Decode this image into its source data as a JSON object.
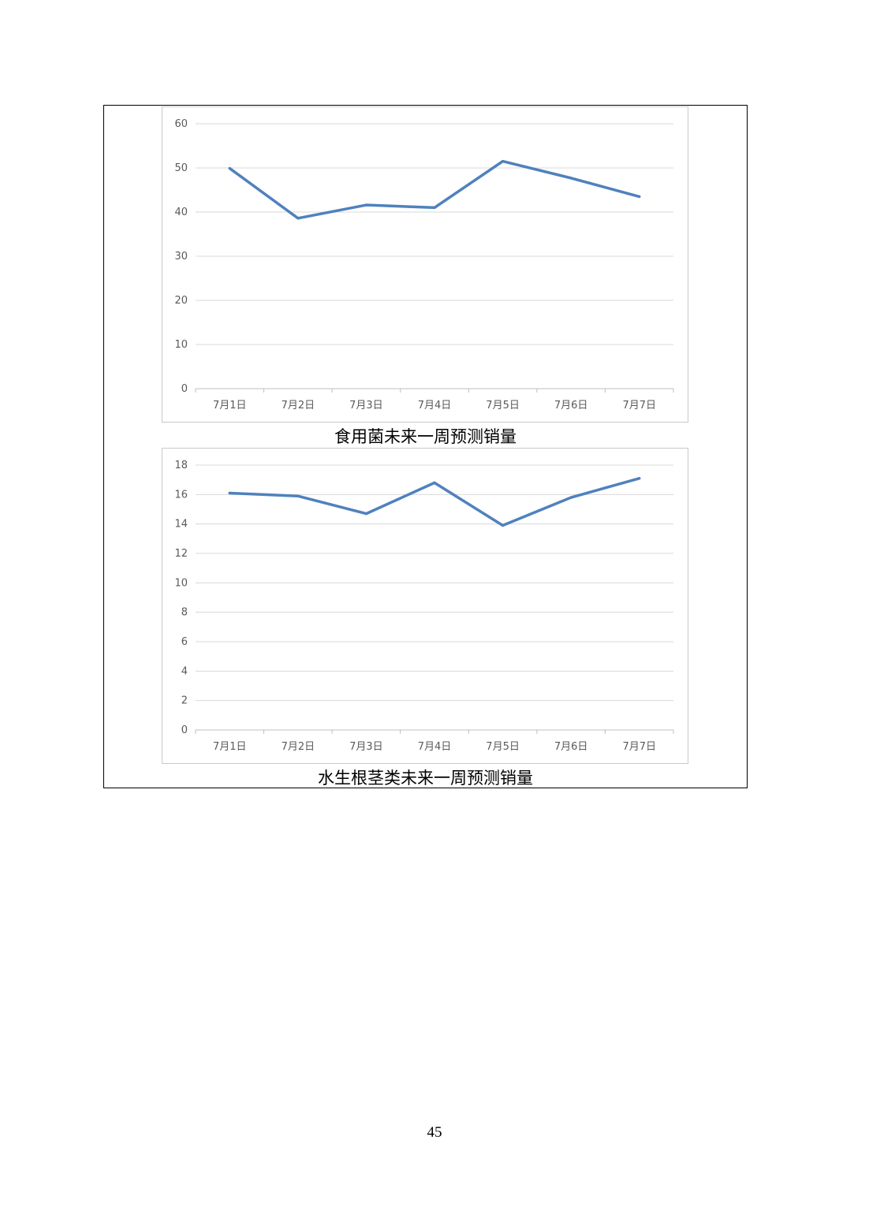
{
  "page_number": "45",
  "colors": {
    "line": "#4f81bd",
    "grid": "#d9d9d9",
    "axis": "#bfbfbf",
    "tick_text": "#595959"
  },
  "chart_data": [
    {
      "type": "line",
      "title": "食用菌未来一周预测销量",
      "categories": [
        "7月1日",
        "7月2日",
        "7月3日",
        "7月4日",
        "7月5日",
        "7月6日",
        "7月7日"
      ],
      "series": [
        {
          "values": [
            49.9,
            38.6,
            41.6,
            41.0,
            51.5,
            47.7,
            43.5
          ]
        }
      ],
      "ylim": [
        0,
        60
      ],
      "yticks": [
        0,
        10,
        20,
        30,
        40,
        50,
        60
      ],
      "grid": true,
      "legend": "none"
    },
    {
      "type": "line",
      "title": "水生根茎类未来一周预测销量",
      "categories": [
        "7月1日",
        "7月2日",
        "7月3日",
        "7月4日",
        "7月5日",
        "7月6日",
        "7月7日"
      ],
      "series": [
        {
          "values": [
            16.1,
            15.9,
            14.7,
            16.8,
            13.9,
            15.8,
            17.1
          ]
        }
      ],
      "ylim": [
        0,
        18
      ],
      "yticks": [
        0,
        2,
        4,
        6,
        8,
        10,
        12,
        14,
        16,
        18
      ],
      "grid": true,
      "legend": "none"
    }
  ]
}
